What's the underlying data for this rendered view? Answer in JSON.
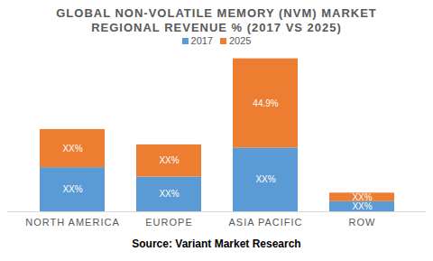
{
  "chart_data": {
    "type": "bar",
    "title": "GLOBAL NON-VOLATILE MEMORY (NVM) MARKET REGIONAL REVENUE % (2017 VS 2025)",
    "caption": "Source: Variant Market Research",
    "categories": [
      "NORTH AMERICA",
      "EUROPE",
      "ASIA PACIFIC",
      "ROW"
    ],
    "series": [
      {
        "name": "2017",
        "color": "#5B9BD5",
        "values": [
          22.2,
          17.5,
          32.1,
          5.1
        ],
        "value_labels": [
          "XX%",
          "XX%",
          "XX%",
          "XX%"
        ]
      },
      {
        "name": "2025",
        "color": "#ED7D31",
        "values": [
          19.2,
          16.2,
          44.9,
          4.3
        ],
        "value_labels": [
          "XX%",
          "XX%",
          "44.9%",
          "XX%"
        ]
      }
    ],
    "stacked": true,
    "data_labels": true,
    "tick_labels": "x",
    "legend": "top",
    "ylim": [
      0,
      80
    ]
  }
}
